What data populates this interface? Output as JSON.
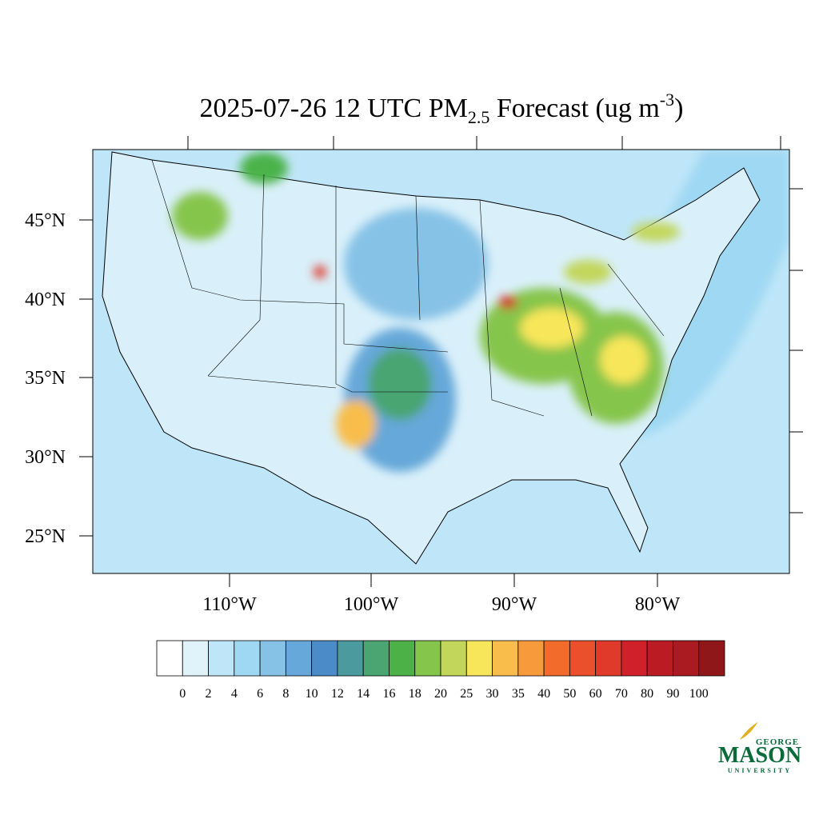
{
  "title": {
    "main": "2025-07-26 12 UTC PM",
    "subscript": "2.5",
    "middle": " Forecast (ug m",
    "superscript": "-3",
    "end": ")"
  },
  "latitude_labels": [
    "45°N",
    "40°N",
    "35°N",
    "30°N",
    "25°N"
  ],
  "longitude_labels": [
    "110°W",
    "100°W",
    "90°W",
    "80°W"
  ],
  "colorbar": {
    "levels": [
      0,
      2,
      4,
      6,
      8,
      10,
      12,
      14,
      16,
      18,
      20,
      25,
      30,
      35,
      40,
      50,
      60,
      70,
      80,
      90,
      100
    ],
    "colors": [
      "#ffffff",
      "#e0f3fb",
      "#bfe6f8",
      "#9fd8f3",
      "#86c2e6",
      "#66a8d9",
      "#4a8bc8",
      "#4a9a9e",
      "#4aa572",
      "#4cb248",
      "#86c54b",
      "#c2d65b",
      "#f7e65a",
      "#f8bd4b",
      "#f79a3c",
      "#f36b2b",
      "#e9502b",
      "#e03a2a",
      "#d0202a",
      "#bb1c24",
      "#a91a21",
      "#8f1619"
    ]
  },
  "logo": {
    "top": "GEORGE",
    "main": "MASON",
    "bottom": "UNIVERSITY"
  }
}
